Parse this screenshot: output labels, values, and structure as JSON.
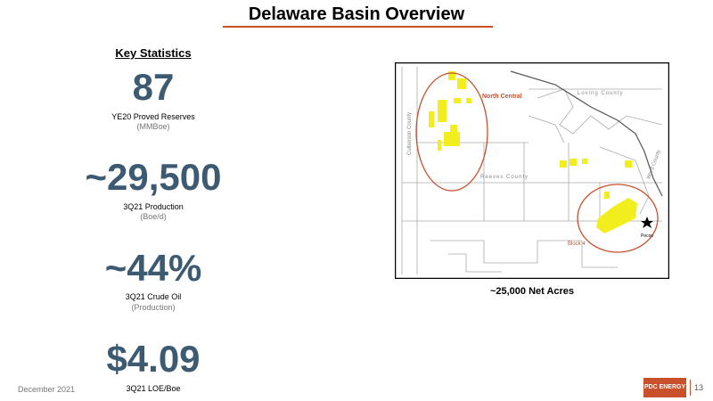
{
  "header": {
    "title": "Delaware Basin Overview"
  },
  "key_statistics": {
    "heading": "Key Statistics",
    "items": [
      {
        "value": "87",
        "label": "YE20 Proved Reserves",
        "unit": "(MMBoe)"
      },
      {
        "value": "~29,500",
        "label": "3Q21 Production",
        "unit": "(Boe/d)"
      },
      {
        "value": "~44%",
        "label": "3Q21 Crude Oil",
        "unit": "(Production)"
      },
      {
        "value": "$4.09",
        "label": "3Q21 LOE/Boe"
      }
    ]
  },
  "map": {
    "labels": {
      "north_central": "North Central",
      "loving": "Loving County",
      "reeves": "Reeves County",
      "culberson": "Culberson County",
      "ward": "Ward County",
      "block4": "Block 4",
      "pecos": "Pecos"
    },
    "caption": "~25,000 Net Acres"
  },
  "footer": {
    "date": "December 2021",
    "logo": "PDC ENERGY",
    "page": "13"
  }
}
